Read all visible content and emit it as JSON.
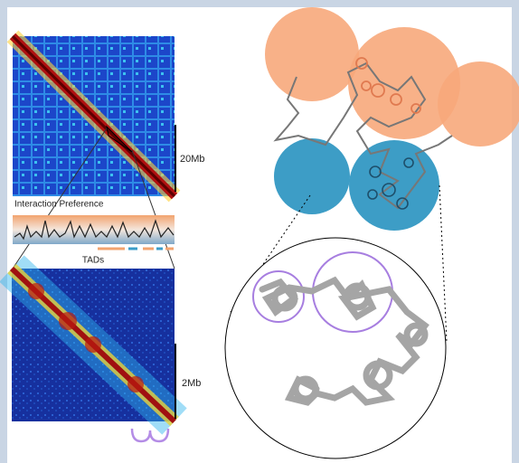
{
  "labels": {
    "scale_large": "20Mb",
    "track_title": "Interaction Preference",
    "tads": "TADs",
    "scale_small": "2Mb"
  }
}
